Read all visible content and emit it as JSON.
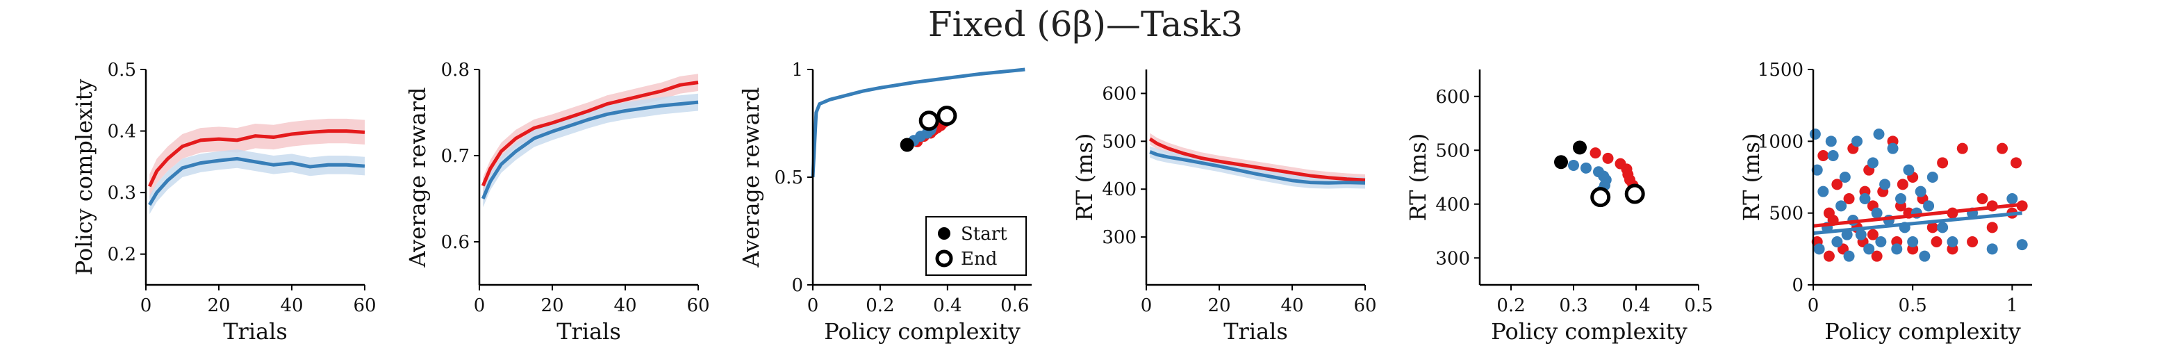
{
  "title": "Fixed (6β)—Task3",
  "colors": {
    "red": "#e41a1c",
    "blue": "#377eb8",
    "red_band": "#f6c9cb",
    "blue_band": "#c9dcef"
  },
  "chart_data": [
    {
      "type": "line",
      "xlabel": "Trials",
      "ylabel": "Policy complexity",
      "xlim": [
        0,
        60
      ],
      "ylim": [
        0.15,
        0.5
      ],
      "xticks": [
        0,
        20,
        40,
        60
      ],
      "xtick_labels": [
        "0",
        "20",
        "40",
        "60"
      ],
      "yticks": [
        0.2,
        0.3,
        0.4,
        0.5
      ],
      "ytick_labels": [
        "0.2",
        "0.3",
        "0.4",
        "0.5"
      ],
      "x": [
        1,
        3,
        6,
        10,
        15,
        20,
        25,
        30,
        35,
        40,
        45,
        50,
        55,
        60
      ],
      "series": [
        {
          "color": "red",
          "band": 0.02,
          "values": [
            0.31,
            0.335,
            0.355,
            0.375,
            0.385,
            0.387,
            0.385,
            0.392,
            0.39,
            0.395,
            0.398,
            0.4,
            0.4,
            0.398
          ]
        },
        {
          "color": "blue",
          "band": 0.015,
          "values": [
            0.28,
            0.3,
            0.32,
            0.34,
            0.348,
            0.352,
            0.355,
            0.35,
            0.345,
            0.348,
            0.342,
            0.345,
            0.345,
            0.343
          ]
        }
      ]
    },
    {
      "type": "line",
      "xlabel": "Trials",
      "ylabel": "Average reward",
      "xlim": [
        0,
        60
      ],
      "ylim": [
        0.55,
        0.8
      ],
      "xticks": [
        0,
        20,
        40,
        60
      ],
      "xtick_labels": [
        "0",
        "20",
        "40",
        "60"
      ],
      "yticks": [
        0.6,
        0.7,
        0.8
      ],
      "ytick_labels": [
        "0.6",
        "0.7",
        "0.8"
      ],
      "x": [
        1,
        3,
        6,
        10,
        15,
        20,
        25,
        30,
        35,
        40,
        45,
        50,
        55,
        60
      ],
      "series": [
        {
          "color": "red",
          "band": 0.01,
          "values": [
            0.665,
            0.685,
            0.705,
            0.72,
            0.732,
            0.738,
            0.745,
            0.752,
            0.76,
            0.765,
            0.77,
            0.775,
            0.782,
            0.785
          ]
        },
        {
          "color": "blue",
          "band": 0.01,
          "values": [
            0.65,
            0.67,
            0.69,
            0.705,
            0.72,
            0.728,
            0.735,
            0.742,
            0.748,
            0.752,
            0.755,
            0.758,
            0.76,
            0.762
          ]
        }
      ]
    },
    {
      "type": "scatter",
      "xlabel": "Policy complexity",
      "ylabel": "Average reward",
      "xlim": [
        0,
        0.65
      ],
      "ylim": [
        0,
        1
      ],
      "xticks": [
        0,
        0.2,
        0.4,
        0.6
      ],
      "xtick_labels": [
        "0",
        "0.2",
        "0.4",
        "0.6"
      ],
      "yticks": [
        0,
        0.5,
        1
      ],
      "ytick_labels": [
        "0",
        "0.5",
        "1"
      ],
      "frontier": {
        "color": "blue",
        "x": [
          0,
          0.01,
          0.02,
          0.05,
          0.1,
          0.15,
          0.2,
          0.3,
          0.4,
          0.5,
          0.6,
          0.63
        ],
        "y": [
          0.5,
          0.8,
          0.84,
          0.86,
          0.88,
          0.9,
          0.915,
          0.94,
          0.96,
          0.98,
          0.995,
          1.0
        ]
      },
      "series": [
        {
          "color": "red",
          "x": [
            0.31,
            0.33,
            0.35,
            0.36,
            0.37,
            0.38,
            0.385,
            0.39,
            0.39,
            0.4,
            0.398
          ],
          "y": [
            0.665,
            0.69,
            0.705,
            0.72,
            0.73,
            0.74,
            0.75,
            0.755,
            0.765,
            0.775,
            0.785
          ]
        },
        {
          "color": "blue",
          "x": [
            0.28,
            0.3,
            0.32,
            0.34,
            0.35,
            0.352,
            0.35,
            0.345,
            0.348,
            0.343
          ],
          "y": [
            0.65,
            0.67,
            0.69,
            0.705,
            0.72,
            0.73,
            0.74,
            0.748,
            0.755,
            0.762
          ]
        }
      ],
      "start_points": [
        {
          "x": 0.28,
          "y": 0.65
        }
      ],
      "end_points": [
        {
          "x": 0.345,
          "y": 0.762
        },
        {
          "x": 0.398,
          "y": 0.785
        }
      ],
      "legend": {
        "position": "bottom-right",
        "entries": [
          "Start",
          "End"
        ]
      }
    },
    {
      "type": "line",
      "xlabel": "Trials",
      "ylabel": "RT (ms)",
      "xlim": [
        0,
        60
      ],
      "ylim": [
        200,
        650
      ],
      "xticks": [
        0,
        20,
        40,
        60
      ],
      "xtick_labels": [
        "0",
        "20",
        "40",
        "60"
      ],
      "yticks": [
        300,
        400,
        500,
        600
      ],
      "ytick_labels": [
        "300",
        "400",
        "500",
        "600"
      ],
      "x": [
        1,
        3,
        6,
        10,
        15,
        20,
        25,
        30,
        35,
        40,
        45,
        50,
        55,
        60
      ],
      "series": [
        {
          "color": "red",
          "band": 12,
          "values": [
            505,
            495,
            485,
            475,
            465,
            458,
            452,
            446,
            440,
            434,
            428,
            424,
            421,
            419
          ]
        },
        {
          "color": "blue",
          "band": 12,
          "values": [
            478,
            472,
            467,
            462,
            455,
            448,
            440,
            432,
            425,
            418,
            414,
            413,
            414,
            413
          ]
        }
      ]
    },
    {
      "type": "scatter",
      "xlabel": "Policy complexity",
      "ylabel": "RT (ms)",
      "xlim": [
        0.15,
        0.5
      ],
      "ylim": [
        250,
        650
      ],
      "xticks": [
        0.2,
        0.3,
        0.4,
        0.5
      ],
      "xtick_labels": [
        "0.2",
        "0.3",
        "0.4",
        "0.5"
      ],
      "yticks": [
        300,
        400,
        500,
        600
      ],
      "ytick_labels": [
        "300",
        "400",
        "500",
        "600"
      ],
      "series": [
        {
          "color": "red",
          "x": [
            0.31,
            0.335,
            0.355,
            0.375,
            0.385,
            0.387,
            0.39,
            0.395,
            0.4,
            0.398
          ],
          "y": [
            505,
            495,
            485,
            475,
            465,
            455,
            445,
            435,
            425,
            419
          ]
        },
        {
          "color": "blue",
          "x": [
            0.28,
            0.3,
            0.32,
            0.34,
            0.348,
            0.352,
            0.35,
            0.345,
            0.345,
            0.343
          ],
          "y": [
            478,
            472,
            467,
            460,
            452,
            445,
            435,
            425,
            418,
            413
          ]
        }
      ],
      "start_points": [
        {
          "x": 0.31,
          "y": 505
        },
        {
          "x": 0.28,
          "y": 478
        }
      ],
      "end_points": [
        {
          "x": 0.398,
          "y": 419
        },
        {
          "x": 0.343,
          "y": 413
        }
      ]
    },
    {
      "type": "scatter",
      "xlabel": "Policy complexity",
      "ylabel": "RT (ms)",
      "xlim": [
        0,
        1.1
      ],
      "ylim": [
        0,
        1500
      ],
      "xticks": [
        0,
        0.5,
        1
      ],
      "xtick_labels": [
        "0",
        "0.5",
        "1"
      ],
      "yticks": [
        0,
        500,
        1000,
        1500
      ],
      "ytick_labels": [
        "0",
        "500",
        "1000",
        "1500"
      ],
      "series": [
        {
          "color": "red",
          "x": [
            0.02,
            0.05,
            0.08,
            0.12,
            0.15,
            0.18,
            0.2,
            0.22,
            0.25,
            0.28,
            0.3,
            0.32,
            0.35,
            0.38,
            0.4,
            0.42,
            0.45,
            0.48,
            0.5,
            0.55,
            0.6,
            0.65,
            0.7,
            0.75,
            0.8,
            0.85,
            0.9,
            0.95,
            1.0,
            1.05,
            0.1,
            0.3,
            0.5,
            0.7,
            0.9,
            1.02,
            0.62,
            0.44,
            0.26,
            0.08
          ],
          "y": [
            300,
            900,
            500,
            700,
            250,
            600,
            950,
            400,
            300,
            800,
            550,
            200,
            650,
            450,
            1000,
            300,
            700,
            500,
            250,
            600,
            400,
            850,
            500,
            950,
            300,
            600,
            550,
            950,
            500,
            550,
            450,
            350,
            750,
            250,
            400,
            850,
            300,
            550,
            650,
            200
          ],
          "fit": {
            "x": [
              0,
              1.05
            ],
            "y": [
              410,
              560
            ]
          }
        },
        {
          "color": "blue",
          "x": [
            0.01,
            0.03,
            0.05,
            0.07,
            0.1,
            0.12,
            0.14,
            0.16,
            0.18,
            0.2,
            0.22,
            0.24,
            0.26,
            0.28,
            0.3,
            0.32,
            0.34,
            0.36,
            0.38,
            0.4,
            0.42,
            0.44,
            0.46,
            0.48,
            0.5,
            0.52,
            0.54,
            0.56,
            0.58,
            0.6,
            0.65,
            0.7,
            0.8,
            0.9,
            1.0,
            1.05,
            0.02,
            0.09,
            0.17,
            0.33
          ],
          "y": [
            1050,
            250,
            650,
            400,
            900,
            300,
            550,
            750,
            200,
            450,
            1000,
            350,
            600,
            250,
            850,
            500,
            300,
            700,
            450,
            950,
            250,
            600,
            400,
            800,
            300,
            500,
            650,
            200,
            550,
            750,
            400,
            300,
            500,
            250,
            600,
            280,
            800,
            1000,
            350,
            1050
          ],
          "fit": {
            "x": [
              0,
              1.05
            ],
            "y": [
              360,
              500
            ]
          }
        }
      ]
    }
  ]
}
